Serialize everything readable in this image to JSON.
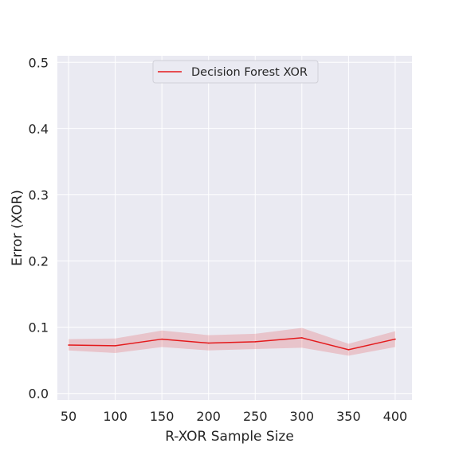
{
  "chart_data": {
    "type": "line",
    "xlabel": "R-XOR Sample Size",
    "ylabel": "Error (XOR)",
    "xlim": [
      38,
      418
    ],
    "ylim": [
      -0.01,
      0.51
    ],
    "xticks": [
      50,
      100,
      150,
      200,
      250,
      300,
      350,
      400
    ],
    "yticks": [
      0.0,
      0.1,
      0.2,
      0.3,
      0.4,
      0.5
    ],
    "xtick_labels": [
      "50",
      "100",
      "150",
      "200",
      "250",
      "300",
      "350",
      "400"
    ],
    "ytick_labels": [
      "0.0",
      "0.1",
      "0.2",
      "0.3",
      "0.4",
      "0.5"
    ],
    "grid": true,
    "legend_position": "top-center",
    "series": [
      {
        "name": "Decision Forest XOR",
        "color": "#e41a1c",
        "x": [
          50,
          100,
          150,
          200,
          250,
          300,
          350,
          400
        ],
        "values": [
          0.073,
          0.072,
          0.082,
          0.076,
          0.078,
          0.084,
          0.066,
          0.082
        ],
        "lower": [
          0.065,
          0.061,
          0.07,
          0.065,
          0.067,
          0.069,
          0.057,
          0.07
        ],
        "upper": [
          0.082,
          0.083,
          0.095,
          0.088,
          0.09,
          0.099,
          0.075,
          0.094
        ]
      }
    ]
  },
  "colors": {
    "plot_background": "#eaeaf2",
    "grid": "#ffffff",
    "band_fill": "#e41a1c"
  }
}
